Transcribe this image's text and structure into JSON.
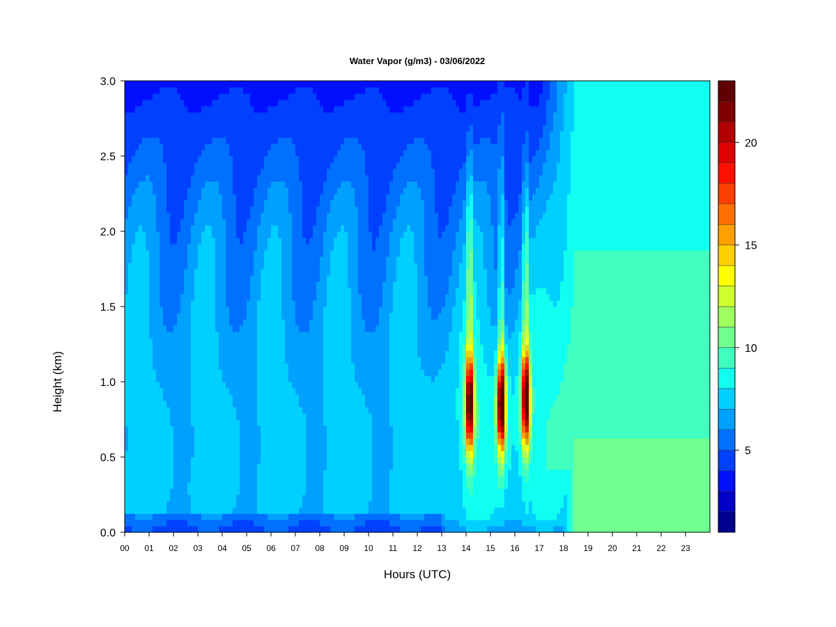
{
  "chart_data": {
    "type": "heatmap",
    "title": "Water Vapor (g/m3) - 03/06/2022",
    "xlabel": "Hours (UTC)",
    "ylabel": "Height (km)",
    "xlim": [
      0,
      24
    ],
    "ylim": [
      0,
      3
    ],
    "x_ticks": [
      "00",
      "01",
      "02",
      "03",
      "04",
      "05",
      "06",
      "07",
      "08",
      "09",
      "10",
      "11",
      "12",
      "13",
      "14",
      "15",
      "16",
      "17",
      "18",
      "19",
      "20",
      "21",
      "22",
      "23"
    ],
    "y_ticks": [
      0.0,
      0.5,
      1.0,
      1.5,
      2.0,
      2.5,
      3.0
    ],
    "y_tick_labels": [
      "0.0",
      "0.5",
      "1.0",
      "1.5",
      "2.0",
      "2.5",
      "3.0"
    ],
    "colorbar": {
      "min": 1,
      "max": 23,
      "ticks": [
        5,
        10,
        15,
        20
      ],
      "tick_labels": [
        "5",
        "10",
        "15",
        "20"
      ],
      "levels": [
        1,
        2,
        3,
        4,
        5,
        6,
        7,
        8,
        9,
        10,
        11,
        12,
        13,
        14,
        15,
        16,
        17,
        18,
        19,
        20,
        21,
        22,
        23
      ],
      "colors": [
        "#00008f",
        "#0000c8",
        "#0010ff",
        "#0040ff",
        "#0070ff",
        "#00a0ff",
        "#00d0ff",
        "#10fff0",
        "#40ffc0",
        "#70ff90",
        "#a0ff60",
        "#d0ff30",
        "#ffff00",
        "#ffd000",
        "#ffa000",
        "#ff7000",
        "#ff4000",
        "#ff1000",
        "#e00000",
        "#b00000",
        "#800000",
        "#600000"
      ]
    },
    "features": {
      "background_profile": {
        "heights_km": [
          0.0,
          0.1,
          0.3,
          0.5,
          0.8,
          1.0,
          1.3,
          1.6,
          2.0,
          2.3,
          2.6,
          2.8,
          3.0
        ],
        "values": [
          6.0,
          7.2,
          7.4,
          7.3,
          7.2,
          7.0,
          6.8,
          6.5,
          6.0,
          5.4,
          4.7,
          4.2,
          3.7
        ]
      },
      "moist_plumes": [
        {
          "hour": 14.15,
          "center_km": 0.85,
          "peak": 21.5
        },
        {
          "hour": 15.45,
          "center_km": 0.85,
          "peak": 22.5
        },
        {
          "hour": 16.45,
          "center_km": 0.88,
          "peak": 21.5
        }
      ],
      "moist_surface_after_hour": 17,
      "surface_moist_value": 10.5
    },
    "grid": false,
    "legend": "none"
  }
}
